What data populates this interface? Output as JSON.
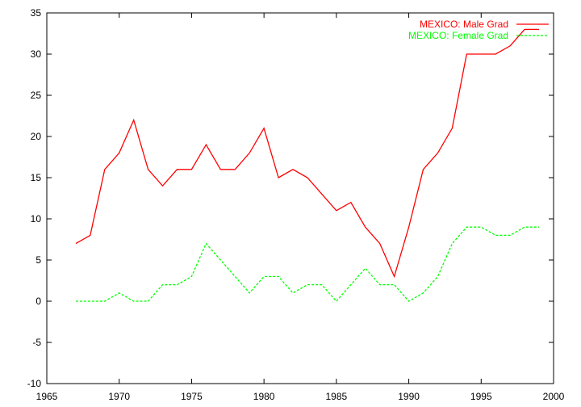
{
  "chart_data": {
    "type": "line",
    "title": "",
    "xlabel": "",
    "ylabel": "",
    "xlim": [
      1965,
      2000
    ],
    "ylim": [
      -10,
      35
    ],
    "x_ticks": [
      1965,
      1970,
      1975,
      1980,
      1985,
      1990,
      1995,
      2000
    ],
    "y_ticks": [
      -10,
      -5,
      0,
      5,
      10,
      15,
      20,
      25,
      30,
      35
    ],
    "grid": false,
    "legend_position": "top-right",
    "series": [
      {
        "name": "MEXICO: Male Grad",
        "color": "#ff0000",
        "dash": "solid",
        "x": [
          1967,
          1968,
          1969,
          1970,
          1971,
          1972,
          1973,
          1974,
          1975,
          1976,
          1977,
          1978,
          1979,
          1980,
          1981,
          1982,
          1983,
          1984,
          1985,
          1986,
          1987,
          1988,
          1989,
          1990,
          1991,
          1992,
          1993,
          1994,
          1995,
          1996,
          1997,
          1998,
          1999
        ],
        "y": [
          7,
          8,
          16,
          18,
          22,
          16,
          14,
          16,
          16,
          19,
          16,
          16,
          18,
          21,
          15,
          16,
          15,
          13,
          11,
          12,
          9,
          7,
          3,
          9,
          16,
          18,
          21,
          30,
          30,
          30,
          31,
          33,
          33
        ]
      },
      {
        "name": "MEXICO: Female Grad",
        "color": "#00ff00",
        "dash": "dashed",
        "x": [
          1967,
          1968,
          1969,
          1970,
          1971,
          1972,
          1973,
          1974,
          1975,
          1976,
          1977,
          1978,
          1979,
          1980,
          1981,
          1982,
          1983,
          1984,
          1985,
          1986,
          1987,
          1988,
          1989,
          1990,
          1991,
          1992,
          1993,
          1994,
          1995,
          1996,
          1997,
          1998,
          1999
        ],
        "y": [
          0,
          0,
          0,
          1,
          0,
          0,
          2,
          2,
          3,
          7,
          5,
          3,
          1,
          3,
          3,
          1,
          2,
          2,
          0,
          2,
          4,
          2,
          2,
          0,
          1,
          3,
          7,
          9,
          9,
          8,
          8,
          9,
          9
        ]
      }
    ]
  }
}
